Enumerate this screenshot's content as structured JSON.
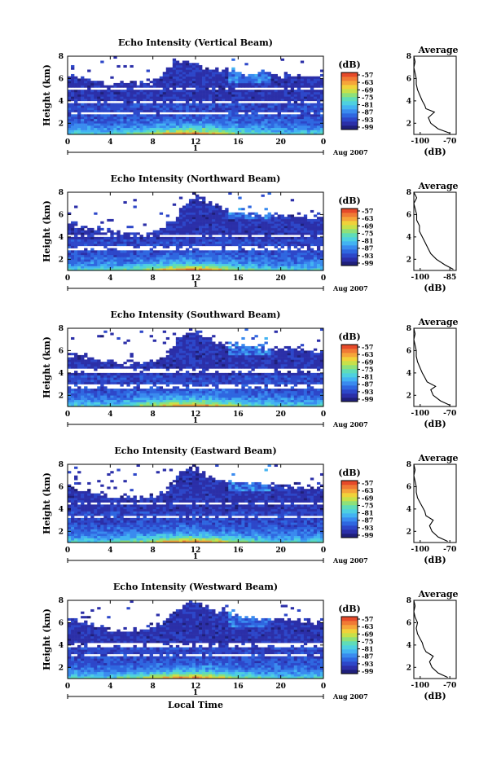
{
  "figure": {
    "common_xlabel": "Local Time",
    "date_label": "Aug 2007",
    "day_label": "1"
  },
  "colormap": [
    "#1f1f7a",
    "#2b2fa8",
    "#2d47c9",
    "#2f67e0",
    "#3a8bef",
    "#43b3f2",
    "#4ed0e0",
    "#5fdcb8",
    "#8ee07a",
    "#c7e04a",
    "#f0d23a",
    "#f5a53a",
    "#f07a35",
    "#e64a2a"
  ],
  "chart_data": [
    {
      "type": "heatmap",
      "title": "Echo Intensity (Vertical Beam)",
      "xlabel": "",
      "ylabel": "Height (km)",
      "xlim": [
        0,
        24
      ],
      "ylim": [
        1,
        8
      ],
      "xticks": [
        "0",
        "4",
        "8",
        "12",
        "16",
        "20",
        "0"
      ],
      "yticks": [
        "2",
        "4",
        "6",
        "8"
      ],
      "colorbar": {
        "unit": "(dB)",
        "ticks": [
          "-57",
          "-63",
          "-69",
          "-75",
          "-81",
          "-87",
          "-93",
          "-99"
        ]
      },
      "profile": {
        "title": "Average",
        "xlabel": "(dB)",
        "xticks": [
          "-100",
          "-70"
        ],
        "xlim": [
          -100,
          -65
        ],
        "yticks": [
          "2",
          "4",
          "6",
          "8"
        ],
        "ylim": [
          1,
          8
        ],
        "height_km": [
          1.1,
          1.5,
          2.0,
          2.5,
          3.0,
          3.3,
          3.6,
          4.0,
          4.5,
          5.0,
          5.5,
          6.0,
          6.5,
          7.0,
          7.5,
          8.0
        ],
        "db": [
          -70,
          -80,
          -86,
          -88,
          -83,
          -90,
          -91,
          -93,
          -95,
          -97,
          -98,
          -98,
          -99,
          -100,
          -99,
          -100
        ]
      },
      "features": {
        "echo_top_km": [
          6.3,
          6.2,
          6.0,
          5.8,
          5.6,
          5.5,
          5.5,
          5.6,
          5.8,
          6.5,
          7.5,
          7.8,
          7.5,
          7.0,
          6.8,
          6.7,
          6.6,
          6.5,
          6.5,
          6.4,
          6.3,
          6.3,
          6.2,
          6.2,
          6.2
        ],
        "gaps_km": [
          5.1,
          3.9,
          2.9
        ]
      }
    },
    {
      "type": "heatmap",
      "title": "Echo Intensity (Northward Beam)",
      "xlabel": "",
      "ylabel": "Height (km)",
      "xlim": [
        0,
        24
      ],
      "ylim": [
        1,
        8
      ],
      "xticks": [
        "0",
        "4",
        "8",
        "12",
        "16",
        "20",
        "0"
      ],
      "yticks": [
        "2",
        "4",
        "6",
        "8"
      ],
      "colorbar": {
        "unit": "(dB)",
        "ticks": [
          "-57",
          "-63",
          "-69",
          "-75",
          "-81",
          "-87",
          "-93",
          "-99"
        ]
      },
      "profile": {
        "title": "Average",
        "xlabel": "(dB)",
        "xticks": [
          "-100",
          "-85"
        ],
        "xlim": [
          -100,
          -85
        ],
        "yticks": [
          "2",
          "4",
          "6",
          "8"
        ],
        "ylim": [
          1,
          8
        ],
        "height_km": [
          1.1,
          1.5,
          2.0,
          2.5,
          3.0,
          3.5,
          4.0,
          4.5,
          5.0,
          5.5,
          6.0,
          6.5,
          7.0,
          7.5,
          8.0
        ],
        "db": [
          -86,
          -89,
          -92,
          -94,
          -95,
          -96,
          -97,
          -98,
          -98,
          -99,
          -99,
          -99.5,
          -100,
          -99,
          -100
        ]
      },
      "features": {
        "echo_top_km": [
          5.2,
          5.0,
          4.8,
          4.7,
          4.5,
          4.4,
          4.3,
          4.3,
          4.4,
          4.8,
          5.5,
          7.0,
          7.6,
          7.2,
          6.8,
          6.5,
          6.3,
          6.2,
          6.0,
          6.0,
          5.9,
          5.9,
          5.8,
          5.8,
          5.8
        ],
        "gaps_km": [
          4.1,
          3.0
        ]
      }
    },
    {
      "type": "heatmap",
      "title": "Echo Intensity (Southward Beam)",
      "xlabel": "",
      "ylabel": "Height (km)",
      "xlim": [
        0,
        24
      ],
      "ylim": [
        1,
        8
      ],
      "xticks": [
        "0",
        "4",
        "8",
        "12",
        "16",
        "20",
        "0"
      ],
      "yticks": [
        "2",
        "4",
        "6",
        "8"
      ],
      "colorbar": {
        "unit": "(dB)",
        "ticks": [
          "-57",
          "-63",
          "-69",
          "-75",
          "-81",
          "-87",
          "-93",
          "-99"
        ]
      },
      "profile": {
        "title": "Average",
        "xlabel": "(dB)",
        "xticks": [
          "-100",
          "-70"
        ],
        "xlim": [
          -100,
          -65
        ],
        "yticks": [
          "2",
          "4",
          "6",
          "8"
        ],
        "ylim": [
          1,
          8
        ],
        "height_km": [
          1.1,
          1.5,
          2.0,
          2.5,
          2.8,
          3.2,
          3.6,
          4.0,
          4.5,
          5.0,
          5.5,
          6.0,
          6.5,
          7.0,
          7.5,
          8.0
        ],
        "db": [
          -70,
          -78,
          -84,
          -86,
          -82,
          -89,
          -91,
          -93,
          -95,
          -97,
          -98,
          -98,
          -99,
          -100,
          -99,
          -100
        ]
      },
      "features": {
        "echo_top_km": [
          5.6,
          5.5,
          5.3,
          5.2,
          5.0,
          4.9,
          4.9,
          5.0,
          5.1,
          5.4,
          6.5,
          7.6,
          7.8,
          7.2,
          6.8,
          6.6,
          6.5,
          6.4,
          6.3,
          6.2,
          6.2,
          6.1,
          6.0,
          6.0,
          6.0
        ],
        "gaps_km": [
          4.2,
          2.8
        ]
      }
    },
    {
      "type": "heatmap",
      "title": "Echo Intensity (Eastward Beam)",
      "xlabel": "",
      "ylabel": "Height (km)",
      "xlim": [
        0,
        24
      ],
      "ylim": [
        1,
        8
      ],
      "xticks": [
        "0",
        "4",
        "8",
        "12",
        "16",
        "20",
        "0"
      ],
      "yticks": [
        "2",
        "4",
        "6",
        "8"
      ],
      "colorbar": {
        "unit": "(dB)",
        "ticks": [
          "-57",
          "-63",
          "-69",
          "-75",
          "-81",
          "-87",
          "-93",
          "-99"
        ]
      },
      "profile": {
        "title": "Average",
        "xlabel": "(dB)",
        "xticks": [
          "-100",
          "-70"
        ],
        "xlim": [
          -100,
          -65
        ],
        "yticks": [
          "2",
          "4",
          "6",
          "8"
        ],
        "ylim": [
          1,
          8
        ],
        "height_km": [
          1.1,
          1.5,
          2.0,
          2.5,
          3.0,
          3.4,
          3.8,
          4.2,
          4.6,
          5.0,
          5.5,
          6.0,
          6.5,
          7.0,
          7.5,
          8.0
        ],
        "db": [
          -72,
          -80,
          -85,
          -87,
          -84,
          -90,
          -91,
          -93,
          -95,
          -97,
          -98,
          -98,
          -99,
          -100,
          -99,
          -100
        ]
      },
      "features": {
        "echo_top_km": [
          6.0,
          5.8,
          5.5,
          5.3,
          5.2,
          5.1,
          5.0,
          5.0,
          5.1,
          5.4,
          6.4,
          7.6,
          7.7,
          7.0,
          6.7,
          6.5,
          6.4,
          6.3,
          6.2,
          6.2,
          6.1,
          6.1,
          6.0,
          6.0,
          6.0
        ],
        "gaps_km": [
          4.5,
          3.3
        ]
      }
    },
    {
      "type": "heatmap",
      "title": "Echo Intensity (Westward Beam)",
      "xlabel": "",
      "ylabel": "Height (km)",
      "xlim": [
        0,
        24
      ],
      "ylim": [
        1,
        8
      ],
      "xticks": [
        "0",
        "4",
        "8",
        "12",
        "16",
        "20",
        "0"
      ],
      "yticks": [
        "2",
        "4",
        "6",
        "8"
      ],
      "colorbar": {
        "unit": "(dB)",
        "ticks": [
          "-57",
          "-63",
          "-69",
          "-75",
          "-81",
          "-87",
          "-93",
          "-99"
        ]
      },
      "profile": {
        "title": "Average",
        "xlabel": "(dB)",
        "xticks": [
          "-100",
          "-70"
        ],
        "xlim": [
          -100,
          -65
        ],
        "yticks": [
          "2",
          "4",
          "6",
          "8"
        ],
        "ylim": [
          1,
          8
        ],
        "height_km": [
          1.1,
          1.5,
          2.0,
          2.5,
          3.0,
          3.4,
          3.8,
          4.2,
          4.6,
          5.0,
          5.5,
          6.0,
          6.5,
          7.0,
          7.5,
          8.0
        ],
        "db": [
          -72,
          -80,
          -85,
          -87,
          -84,
          -90,
          -92,
          -93,
          -95,
          -97,
          -98,
          -97,
          -99,
          -100,
          -99,
          -100
        ]
      },
      "features": {
        "echo_top_km": [
          6.4,
          6.2,
          5.9,
          5.6,
          5.4,
          5.3,
          5.3,
          5.4,
          5.7,
          6.2,
          6.8,
          7.8,
          7.9,
          7.5,
          7.0,
          6.8,
          6.6,
          6.5,
          6.4,
          6.3,
          6.3,
          6.2,
          6.2,
          6.1,
          6.1
        ],
        "gaps_km": [
          4.0,
          3.1
        ]
      }
    }
  ]
}
